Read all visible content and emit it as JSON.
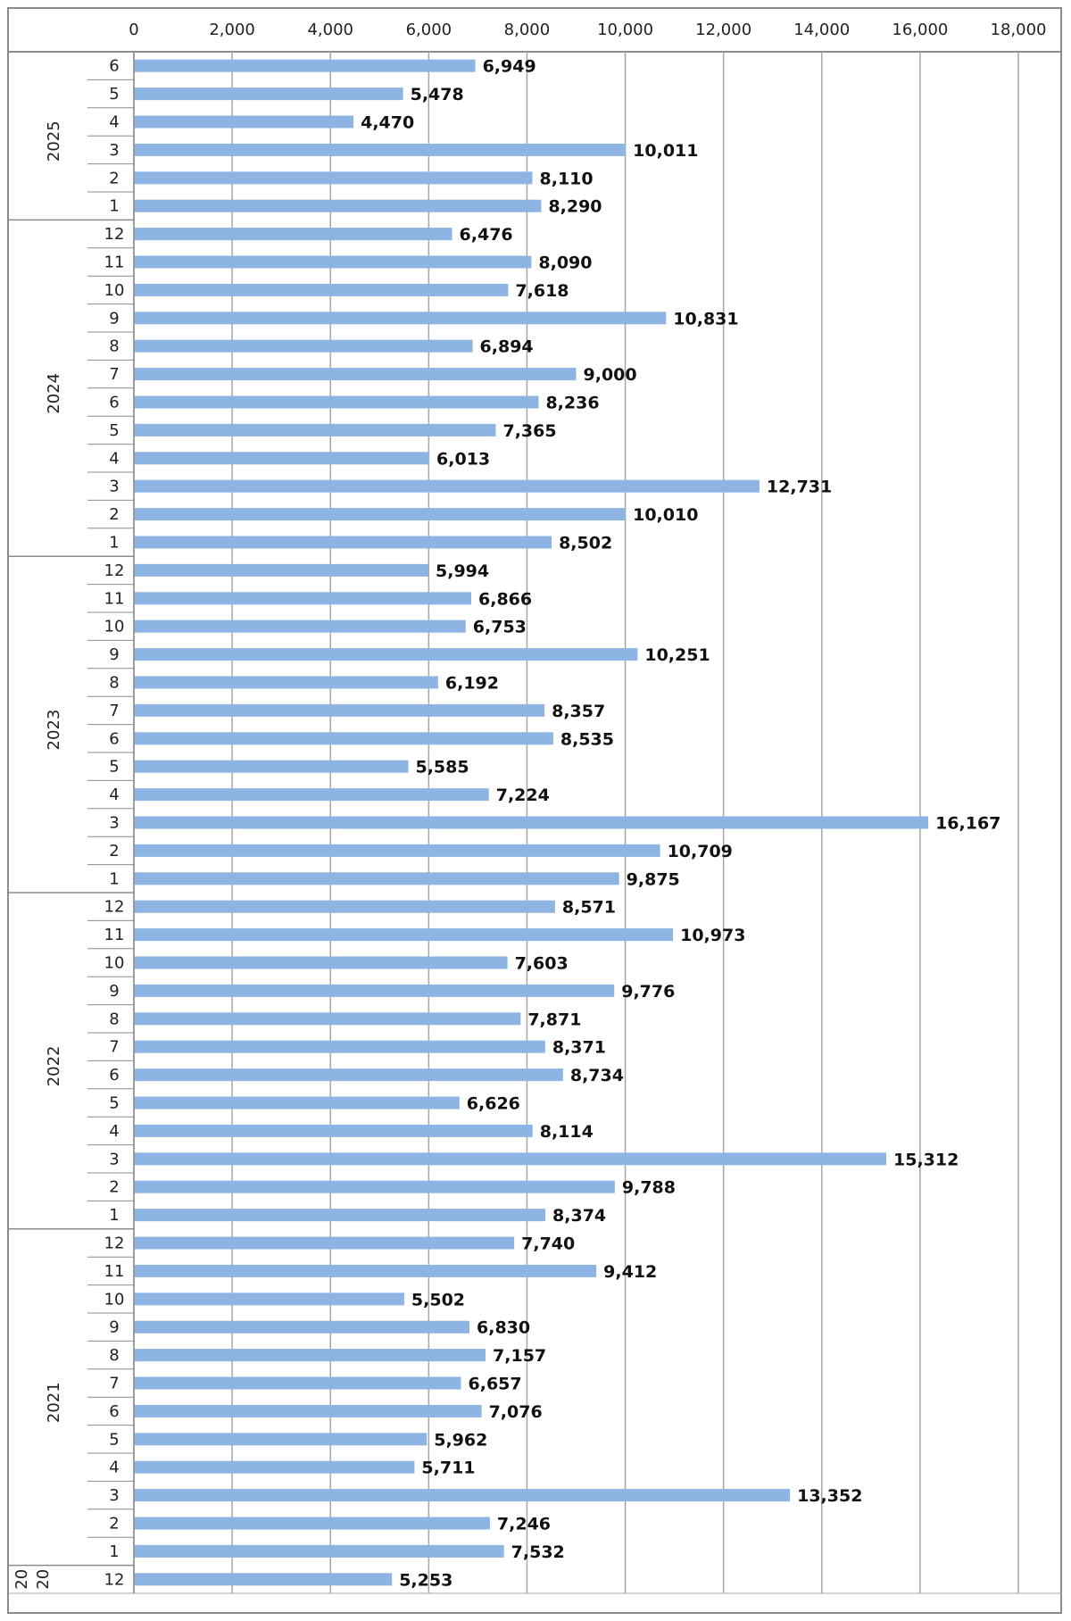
{
  "chart_data": {
    "type": "bar",
    "orientation": "horizontal",
    "title": "",
    "xlabel": "",
    "ylabel": "",
    "xlim": [
      0,
      18000
    ],
    "x_ticks": [
      "0",
      "2,000",
      "4,000",
      "6,000",
      "8,000",
      "10,000",
      "12,000",
      "14,000",
      "16,000",
      "18,000"
    ],
    "x_axis_position": "top",
    "grid": true,
    "legend": "none",
    "bar_color": "#8db4e2",
    "groups": [
      {
        "year": "2025",
        "months": [
          "6",
          "5",
          "4",
          "3",
          "2",
          "1"
        ],
        "values": [
          6949,
          5478,
          4470,
          10011,
          8110,
          8290
        ],
        "labels": [
          "6,949",
          "5,478",
          "4,470",
          "10,011",
          "8,110",
          "8,290"
        ]
      },
      {
        "year": "2024",
        "months": [
          "12",
          "11",
          "10",
          "9",
          "8",
          "7",
          "6",
          "5",
          "4",
          "3",
          "2",
          "1"
        ],
        "values": [
          6476,
          8090,
          7618,
          10831,
          6894,
          9000,
          8236,
          7365,
          6013,
          12731,
          10010,
          8502
        ],
        "labels": [
          "6,476",
          "8,090",
          "7,618",
          "10,831",
          "6,894",
          "9,000",
          "8,236",
          "7,365",
          "6,013",
          "12,731",
          "10,010",
          "8,502"
        ]
      },
      {
        "year": "2023",
        "months": [
          "12",
          "11",
          "10",
          "9",
          "8",
          "7",
          "6",
          "5",
          "4",
          "3",
          "2",
          "1"
        ],
        "values": [
          5994,
          6866,
          6753,
          10251,
          6192,
          8357,
          8535,
          5585,
          7224,
          16167,
          10709,
          9875
        ],
        "labels": [
          "5,994",
          "6,866",
          "6,753",
          "10,251",
          "6,192",
          "8,357",
          "8,535",
          "5,585",
          "7,224",
          "16,167",
          "10,709",
          "9,875"
        ]
      },
      {
        "year": "2022",
        "months": [
          "12",
          "11",
          "10",
          "9",
          "8",
          "7",
          "6",
          "5",
          "4",
          "3",
          "2",
          "1"
        ],
        "values": [
          8571,
          10973,
          7603,
          9776,
          7871,
          8371,
          8734,
          6626,
          8114,
          15312,
          9788,
          8374
        ],
        "labels": [
          "8,571",
          "10,973",
          "7,603",
          "9,776",
          "7,871",
          "8,371",
          "8,734",
          "6,626",
          "8,114",
          "15,312",
          "9,788",
          "8,374"
        ]
      },
      {
        "year": "2021",
        "months": [
          "12",
          "11",
          "10",
          "9",
          "8",
          "7",
          "6",
          "5",
          "4",
          "3",
          "2",
          "1"
        ],
        "values": [
          7740,
          9412,
          5502,
          6830,
          7157,
          6657,
          7076,
          5962,
          5711,
          13352,
          7246,
          7532
        ],
        "labels": [
          "7,740",
          "9,412",
          "5,502",
          "6,830",
          "7,157",
          "6,657",
          "7,076",
          "5,962",
          "5,711",
          "13,352",
          "7,246",
          "7,532"
        ]
      },
      {
        "year": "2020",
        "year_parts": [
          "20",
          "20"
        ],
        "months": [
          "12"
        ],
        "values": [
          5253
        ],
        "labels": [
          "5,253"
        ]
      }
    ]
  }
}
